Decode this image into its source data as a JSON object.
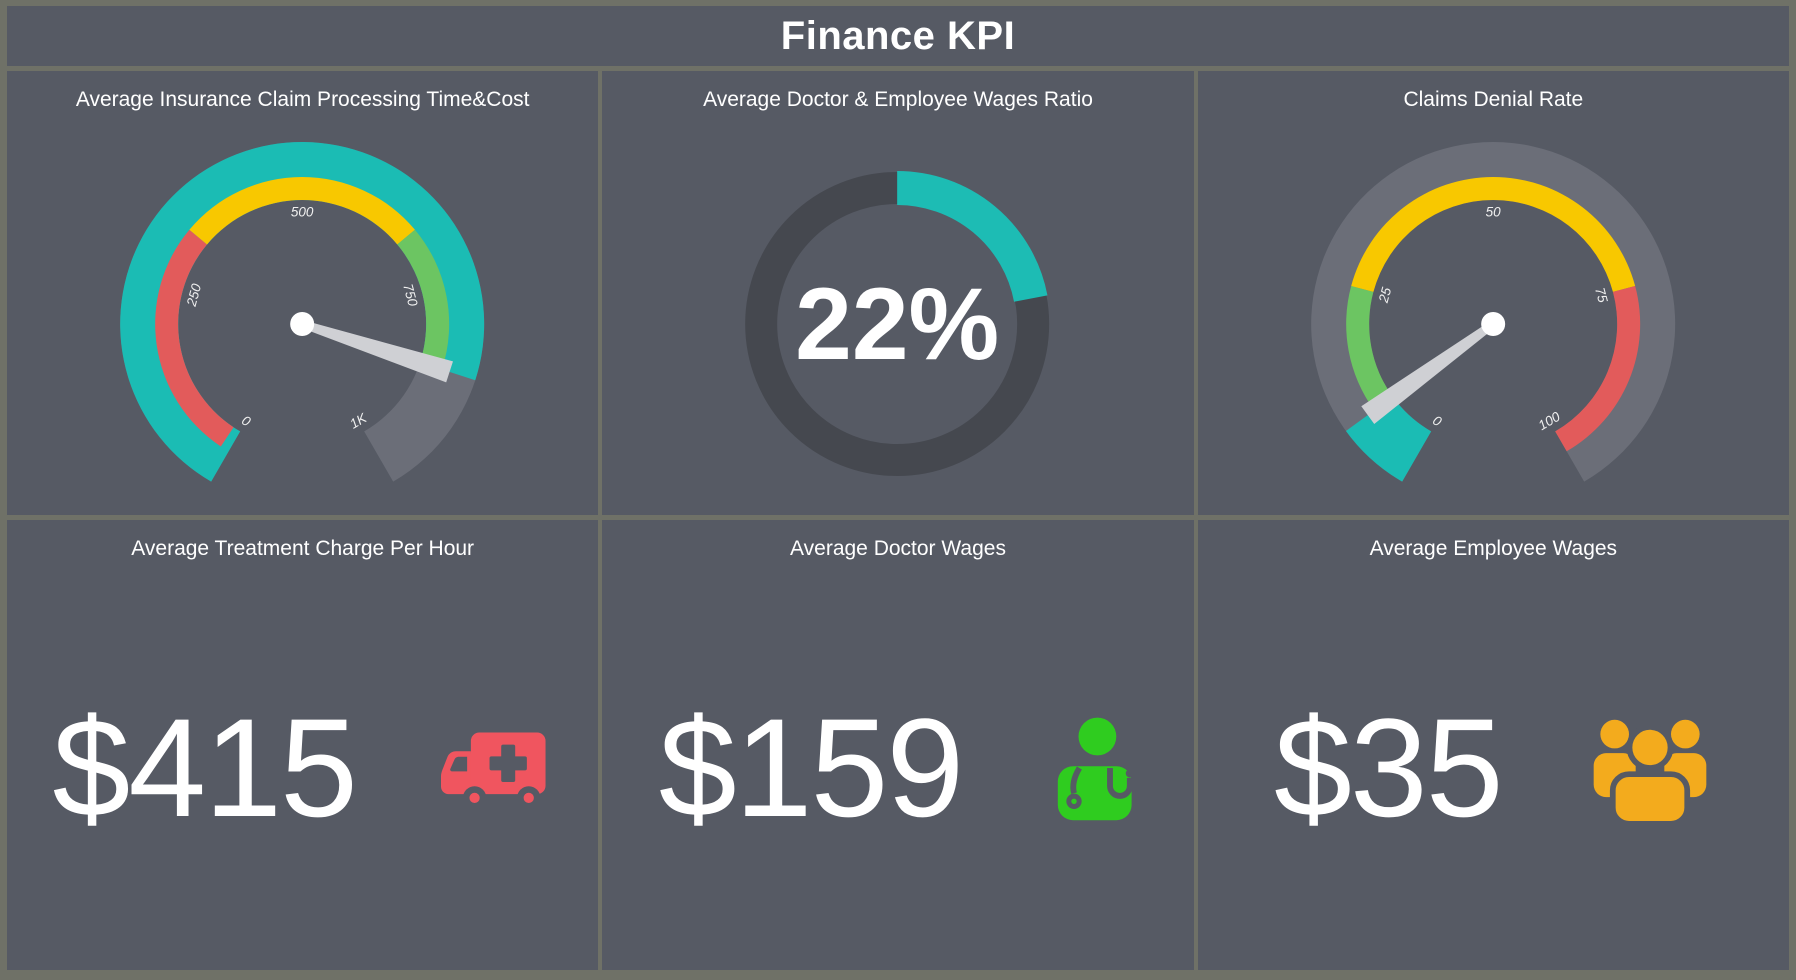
{
  "header": {
    "title": "Finance KPI"
  },
  "theme": {
    "frame_color": "#6f7167",
    "panel_color": "#565a64",
    "text_color": "#ffffff",
    "track_gray": "#6b6e78",
    "teal_accent": "#1bbcb4",
    "needle_color": "#cfd0d4",
    "hub_color": "#ffffff"
  },
  "cards": [
    {
      "title": "Average Insurance Claim Processing Time&Cost",
      "chart_id": "claim_processing_gauge"
    },
    {
      "title": "Average Doctor & Employee Wages Ratio",
      "chart_id": "wages_ratio_donut"
    },
    {
      "title": "Claims Denial Rate",
      "chart_id": "denial_rate_gauge"
    },
    {
      "title": "Average Treatment Charge Per Hour",
      "value": "$415",
      "icon": "ambulance-icon",
      "icon_color": "#f0555f"
    },
    {
      "title": "Average Doctor Wages",
      "value": "$159",
      "icon": "doctor-icon",
      "icon_color": "#2fcc1f"
    },
    {
      "title": "Average Employee Wages",
      "value": "$35",
      "icon": "people-icon",
      "icon_color": "#f3ab1d"
    }
  ],
  "chart_data": [
    {
      "id": "claim_processing_gauge",
      "type": "gauge",
      "title": "Average Insurance Claim Processing Time&Cost",
      "min": 0,
      "max": 1000,
      "value": 860,
      "start_angle": 240,
      "end_angle": -60,
      "ticks": [
        {
          "value": 0,
          "label": "0"
        },
        {
          "value": 250,
          "label": "250"
        },
        {
          "value": 500,
          "label": "500"
        },
        {
          "value": 750,
          "label": "750"
        },
        {
          "value": 1000,
          "label": "1K"
        }
      ],
      "bands": [
        {
          "from": 12,
          "to": 333,
          "color": "#e25b5b"
        },
        {
          "from": 333,
          "to": 667,
          "color": "#f8c800"
        },
        {
          "from": 667,
          "to": 860,
          "color": "#6cc562"
        }
      ],
      "progress": {
        "from": 0,
        "to": 860,
        "color": "#1bbcb4"
      },
      "track_color": "#6b6e78",
      "label_color": "#f0f0f0"
    },
    {
      "id": "wages_ratio_donut",
      "type": "donut",
      "title": "Average Doctor & Employee Wages Ratio",
      "value_percent": 22,
      "center_label": "22%",
      "start": "top",
      "direction": "clockwise",
      "ring_color": "#45484f",
      "arc_color": "#1dbcb4",
      "label_color": "#ffffff"
    },
    {
      "id": "denial_rate_gauge",
      "type": "gauge",
      "title": "Claims Denial Rate",
      "min": 0,
      "max": 100,
      "value": 8,
      "start_angle": 240,
      "end_angle": -60,
      "ticks": [
        {
          "value": 0,
          "label": "0"
        },
        {
          "value": 25,
          "label": "25"
        },
        {
          "value": 50,
          "label": "50"
        },
        {
          "value": 75,
          "label": "75"
        },
        {
          "value": 100,
          "label": "100"
        }
      ],
      "bands": [
        {
          "from": 8,
          "to": 25,
          "color": "#6cc562"
        },
        {
          "from": 25,
          "to": 75,
          "color": "#f8c800"
        },
        {
          "from": 75,
          "to": 100,
          "color": "#e25b5b"
        }
      ],
      "progress": {
        "from": 0,
        "to": 8,
        "color": "#1bbcb4"
      },
      "track_color": "#6b6e78",
      "label_color": "#f0f0f0"
    }
  ]
}
